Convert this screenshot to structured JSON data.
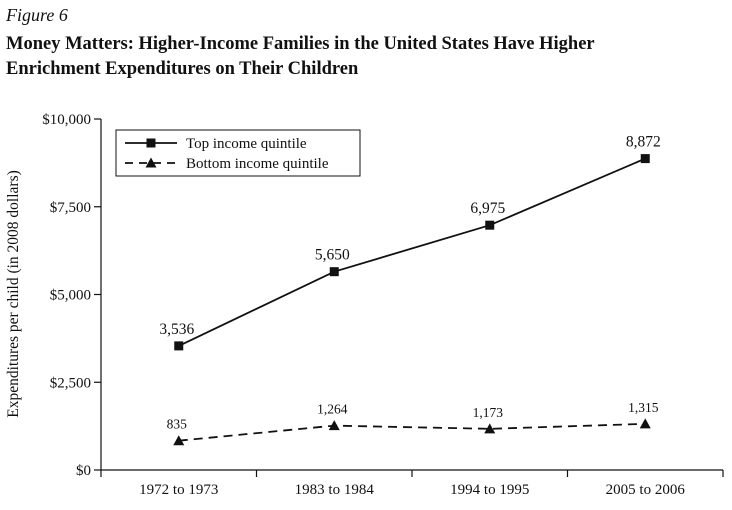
{
  "figure_label": "Figure 6",
  "title_line1": "Money Matters: Higher-Income Families in the United States Have Higher",
  "title_line2": "Enrichment Expenditures on Their Children",
  "chart_data": {
    "type": "line",
    "categories": [
      "1972 to 1973",
      "1983 to 1984",
      "1994 to 1995",
      "2005 to 2006"
    ],
    "series": [
      {
        "name": "Top income quintile",
        "values": [
          3536,
          5650,
          6975,
          8872
        ],
        "labels": [
          "3,536",
          "5,650",
          "6,975",
          "8,872"
        ],
        "line_style": "solid",
        "marker": "square"
      },
      {
        "name": "Bottom income quintile",
        "values": [
          835,
          1264,
          1173,
          1315
        ],
        "labels": [
          "835",
          "1,264",
          "1,173",
          "1,315"
        ],
        "line_style": "dashed",
        "marker": "triangle"
      }
    ],
    "ylabel": "Expenditures per child (in 2008 dollars)",
    "xlabel": "",
    "ylim": [
      0,
      10000
    ],
    "yticks": [
      0,
      2500,
      5000,
      7500,
      10000
    ],
    "ytick_labels": [
      "$0",
      "$2,500",
      "$5,000",
      "$7,500",
      "$10,000"
    ],
    "grid": false,
    "legend_position": "top-left",
    "line_color": "#111111"
  }
}
